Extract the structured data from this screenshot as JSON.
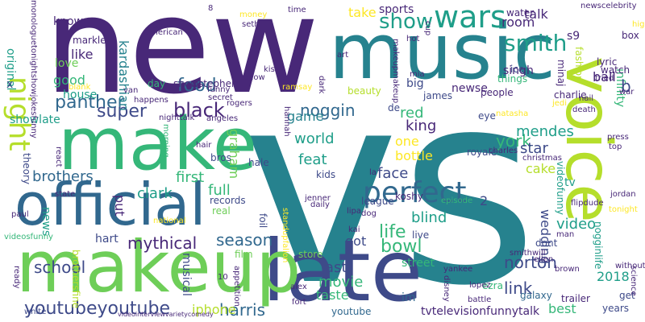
{
  "palette": {
    "purple": "#482878",
    "indigo": "#3e4a89",
    "blue": "#31688e",
    "teal": "#26828e",
    "green_teal": "#1f9e89",
    "green": "#35b779",
    "light_green": "#6ece58",
    "yellow_green": "#b5de2b",
    "yellow": "#fde725"
  },
  "words": {
    "vs": "vs",
    "new": "new",
    "music": "music",
    "make": "make",
    "late": "late",
    "makeup": "makeup",
    "official": "official",
    "voice": "voice",
    "perfect": "perfect",
    "wars": "wars",
    "night": "night",
    "smith": "smith",
    "show": "show",
    "youtubeyoutube": "youtubeyoutube",
    "season": "season",
    "panther": "panther",
    "black": "black",
    "super": "super",
    "noggin": "noggin",
    "food": "food",
    "kardashian": "kardashian",
    "brothers": "brothers",
    "school": "school",
    "mythical": "mythical",
    "harris": "harris",
    "iphone": "iphone",
    "movie": "movie",
    "taste": "taste",
    "bowl": "bowl",
    "life": "life",
    "face": "face",
    "world": "world",
    "feat": "feat",
    "king": "king",
    "red": "red",
    "york": "york",
    "mendes": "mendes",
    "star": "star",
    "cake": "cake",
    "wedding": "wedding",
    "link": "link",
    "best": "best",
    "norton": "norton",
    "video": "video",
    "blind": "blind",
    "full": "full",
    "first": "first",
    "clark": "clark",
    "graham": "graham",
    "room": "room",
    "singh": "singh",
    "take": "take",
    "sports": "sports",
    "talk": "talk",
    "original": "original",
    "good": "good",
    "like": "like",
    "love": "love",
    "know": "know",
    "game": "game",
    "tv": "tv",
    "infinity": "infinity",
    "one": "one",
    "bottle": "bottle",
    "last": "last",
    "got": "got",
    "put": "put",
    "x": "x",
    "b": "b",
    "s9": "s9",
    "2": "2",
    "2018": "2018",
    "years": "years",
    "ezra": "ezra",
    "galaxy": "galaxy",
    "im": "im",
    "tvtelevisionfunnytalk": "tvtelevisionfunnytalk",
    "youtube": "youtube",
    "street": "street",
    "store": "store",
    "musical": "musical",
    "hart": "hart",
    "news": "news",
    "theory": "theory",
    "showlate": "showlate",
    "house": "house",
    "day": "day",
    "showstephen": "showstephen",
    "water": "water",
    "beauty": "beauty",
    "people": "people",
    "things": "things",
    "ice": "ice",
    "newse": "newse",
    "big": "big",
    "minaj": "minaj",
    "fashion": "fashion",
    "ball": "ball",
    "box": "box",
    "lyric": "lyric",
    "watch": "watch",
    "tried": "tried",
    "james": "james",
    "de": "de",
    "eye": "eye",
    "royale": "royale",
    "kids": "kids",
    "koshy": "koshy",
    "league": "league",
    "episode": "episode",
    "live": "live",
    "dont": "dont",
    "videofunny": "videofunny",
    "nogginlife": "nogginlife",
    "flipdude": "flipdude",
    "records": "records",
    "morning": "morning",
    "bros": "bros",
    "hale": "hale",
    "foil": "foil",
    "real": "real",
    "film": "film",
    "nighttalk": "nighttalk",
    "funny": "funny",
    "get": "get",
    "hot": "hot",
    "makeupmakeup": "makeupmakeup",
    "american": "american",
    "cat": "cat",
    "markle": "markle",
    "happens": "happens",
    "time": "time",
    "top": "top",
    "press": "press",
    "christmas": "christmas",
    "jenner": "jenner",
    "la": "la",
    "kai": "kai",
    "dog": "dog",
    "lipa": "lipa",
    "man": "man",
    "smithwill": "smithwill",
    "ellen": "ellen",
    "brown": "brown",
    "trailer": "trailer",
    "battle": "battle",
    "lopez": "lopez",
    "disney": "disney",
    "yankee": "yankee",
    "alex": "alex",
    "fort": "fort",
    "10": "10",
    "appetition": "appetition",
    "ready": "ready",
    "brothersfine": "brothersfine",
    "white": "white",
    "videointerviewvarietycomedy": "videointerviewvarietycomedy",
    "videosfunny": "videosfunny",
    "paul": "paul",
    "state": "state",
    "react": "react",
    "national": "national",
    "hair": "hair",
    "daily": "daily",
    "standupfalion": "standupfalion",
    "charles": "charles",
    "without": "without",
    "science": "science",
    "jordan": "jordan",
    "tonight": "tonight",
    "death": "death",
    "jedi": "jedi",
    "charlie": "charlie",
    "nail": "nail",
    "war": "war",
    "high": "high",
    "newscelebrity": "newscelebrity",
    "monologuetonightshowjokesfunny": "monologuetonightshowjokesfunny",
    "seth": "seth",
    "van": "van",
    "money": "money",
    "kiss": "kiss",
    "secret": "secret",
    "rogers": "rogers",
    "ramsay": "ramsay",
    "blank": "blank",
    "angeles": "angeles",
    "tonow": "tonow",
    "hannah": "hannah",
    "dark": "dark",
    "mia": "mia",
    "art": "art",
    "natasha": "natasha",
    "cup": "cup",
    "8": "8"
  }
}
